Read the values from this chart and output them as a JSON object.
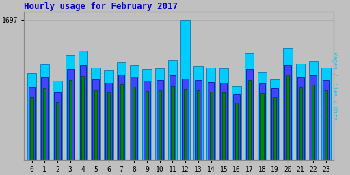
{
  "title": "Hourly usage for February 2017",
  "title_color": "#0000cc",
  "title_fontsize": 9,
  "background_color": "#c0c0c0",
  "plot_bg_color": "#c0c0c0",
  "hours": [
    0,
    1,
    2,
    3,
    4,
    5,
    6,
    7,
    8,
    9,
    10,
    11,
    12,
    13,
    14,
    15,
    16,
    17,
    18,
    19,
    20,
    21,
    22,
    23
  ],
  "pages": [
    760,
    870,
    710,
    970,
    1020,
    850,
    820,
    920,
    890,
    840,
    850,
    900,
    860,
    850,
    830,
    820,
    700,
    970,
    810,
    760,
    1040,
    880,
    910,
    850
  ],
  "files": [
    880,
    1000,
    820,
    1100,
    1150,
    980,
    940,
    1040,
    1010,
    960,
    970,
    1030,
    990,
    970,
    950,
    940,
    800,
    1100,
    930,
    870,
    1150,
    1000,
    1030,
    970
  ],
  "hits": [
    1050,
    1160,
    960,
    1270,
    1330,
    1120,
    1090,
    1190,
    1150,
    1100,
    1110,
    1210,
    1697,
    1140,
    1120,
    1110,
    900,
    1290,
    1060,
    980,
    1360,
    1170,
    1200,
    1120
  ],
  "pages_color": "#008800",
  "files_color": "#4444ff",
  "hits_color": "#00ccff",
  "pages_edge": "#004400",
  "files_edge": "#000088",
  "hits_edge": "#0066aa",
  "ylim_max": 1800,
  "ytick_label": "1697",
  "font_family": "monospace",
  "font_size_axis": 7,
  "grid_color": "#aaaaaa",
  "ylabel_right": "Pages / Files / Hits",
  "ylabel_pages_color": "#008800",
  "ylabel_files_color": "#4444ff",
  "ylabel_hits_color": "#00ccff"
}
